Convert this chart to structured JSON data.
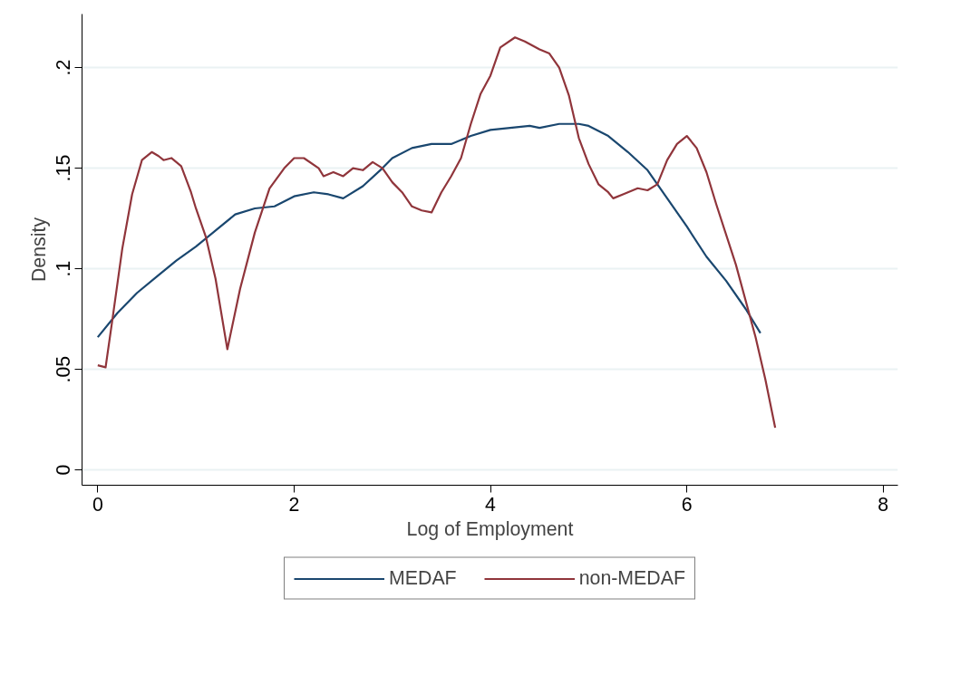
{
  "chart_data": {
    "type": "line",
    "xlabel": "Log of Employment",
    "ylabel": "Density",
    "xlim": [
      -0.16,
      8.15
    ],
    "ylim": [
      -0.0076,
      0.2266
    ],
    "xticks": [
      0,
      2,
      4,
      6,
      8
    ],
    "yticks": [
      {
        "value": 0,
        "label": "0"
      },
      {
        "value": 0.05,
        "label": ".05"
      },
      {
        "value": 0.1,
        "label": ".1"
      },
      {
        "value": 0.15,
        "label": ".15"
      },
      {
        "value": 0.2,
        "label": ".2"
      }
    ],
    "grid": "y",
    "legend": "bottom",
    "line_style": "solid",
    "series": [
      {
        "name": "MEDAF",
        "color": "#1a476f",
        "x": [
          0,
          0.2,
          0.4,
          0.6,
          0.8,
          1.0,
          1.2,
          1.4,
          1.6,
          1.8,
          2.0,
          2.2,
          2.35,
          2.5,
          2.7,
          2.9,
          3.0,
          3.2,
          3.4,
          3.6,
          3.8,
          4.0,
          4.2,
          4.4,
          4.5,
          4.7,
          4.9,
          5.0,
          5.2,
          5.4,
          5.6,
          5.8,
          6.0,
          6.2,
          6.4,
          6.6,
          6.75
        ],
        "values": [
          0.066,
          0.078,
          0.088,
          0.096,
          0.104,
          0.111,
          0.119,
          0.127,
          0.13,
          0.131,
          0.136,
          0.138,
          0.137,
          0.135,
          0.141,
          0.15,
          0.155,
          0.16,
          0.162,
          0.162,
          0.166,
          0.169,
          0.17,
          0.171,
          0.17,
          0.172,
          0.172,
          0.171,
          0.166,
          0.158,
          0.149,
          0.135,
          0.121,
          0.106,
          0.094,
          0.08,
          0.068
        ]
      },
      {
        "name": "non-MEDAF",
        "color": "#90353b",
        "x": [
          0,
          0.08,
          0.15,
          0.25,
          0.35,
          0.45,
          0.55,
          0.62,
          0.67,
          0.75,
          0.85,
          0.95,
          1.0,
          1.1,
          1.2,
          1.32,
          1.45,
          1.6,
          1.75,
          1.9,
          2.0,
          2.1,
          2.25,
          2.3,
          2.4,
          2.5,
          2.6,
          2.7,
          2.8,
          2.9,
          3.0,
          3.1,
          3.2,
          3.3,
          3.4,
          3.5,
          3.6,
          3.7,
          3.8,
          3.9,
          4.0,
          4.1,
          4.25,
          4.35,
          4.5,
          4.6,
          4.7,
          4.8,
          4.9,
          5.0,
          5.1,
          5.2,
          5.25,
          5.35,
          5.5,
          5.6,
          5.7,
          5.8,
          5.9,
          6.0,
          6.1,
          6.2,
          6.3,
          6.5,
          6.7,
          6.8,
          6.9
        ],
        "values": [
          0.052,
          0.051,
          0.075,
          0.11,
          0.137,
          0.154,
          0.158,
          0.156,
          0.154,
          0.155,
          0.151,
          0.138,
          0.13,
          0.116,
          0.095,
          0.06,
          0.09,
          0.118,
          0.14,
          0.15,
          0.155,
          0.155,
          0.15,
          0.146,
          0.148,
          0.146,
          0.15,
          0.149,
          0.153,
          0.15,
          0.143,
          0.138,
          0.131,
          0.129,
          0.128,
          0.138,
          0.146,
          0.155,
          0.172,
          0.187,
          0.196,
          0.21,
          0.215,
          0.213,
          0.209,
          0.207,
          0.2,
          0.186,
          0.165,
          0.152,
          0.142,
          0.138,
          0.135,
          0.137,
          0.14,
          0.139,
          0.142,
          0.154,
          0.162,
          0.166,
          0.16,
          0.148,
          0.132,
          0.102,
          0.066,
          0.045,
          0.021
        ]
      }
    ]
  }
}
